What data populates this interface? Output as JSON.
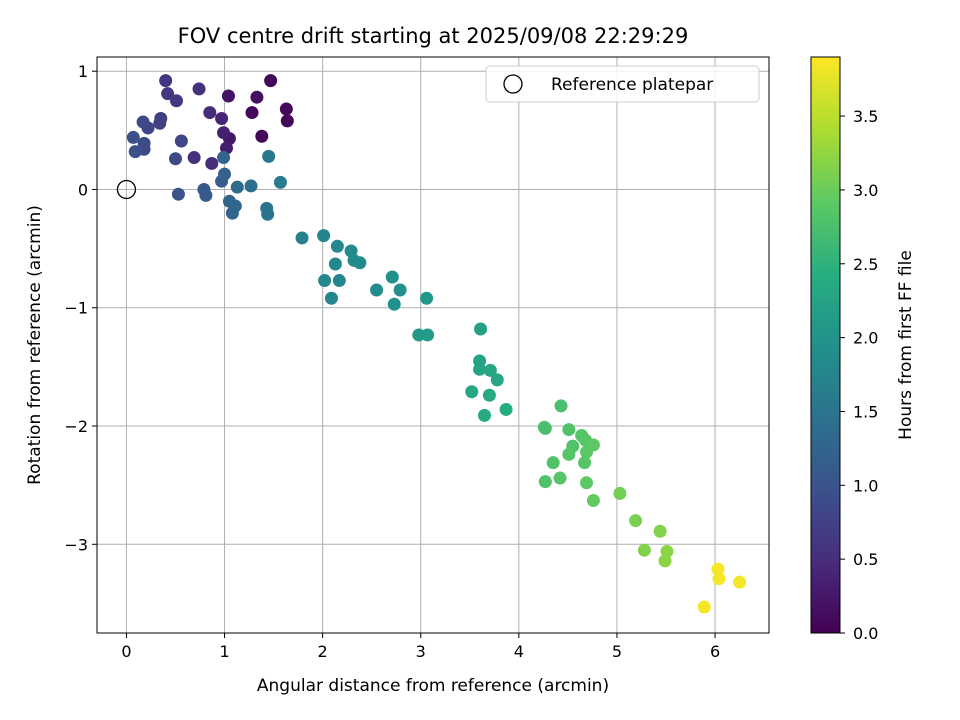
{
  "chart_data": {
    "type": "scatter",
    "title": "FOV centre drift starting at 2025/09/08 22:29:29",
    "xlabel": "Angular distance from reference (arcmin)",
    "ylabel": "Rotation from reference (arcmin)",
    "xlim": [
      -0.3,
      6.55
    ],
    "ylim": [
      -3.75,
      1.12
    ],
    "xticks": [
      0,
      1,
      2,
      3,
      4,
      5,
      6
    ],
    "yticks": [
      1,
      0,
      -1,
      -2,
      -3
    ],
    "grid": true,
    "legend": {
      "placement": "top-right",
      "entries": [
        "Reference platepar"
      ]
    },
    "reference_point": {
      "x": 0,
      "y": 0
    },
    "colorbar": {
      "label": "Hours from first FF file",
      "range": [
        0,
        3.9
      ],
      "ticks": [
        0.0,
        0.5,
        1.0,
        1.5,
        2.0,
        2.5,
        3.0,
        3.5
      ],
      "tick_labels": [
        "0.0",
        "0.5",
        "1.0",
        "1.5",
        "2.0",
        "2.5",
        "3.0",
        "3.5"
      ],
      "colormap": "viridis"
    },
    "points": [
      {
        "x": 1.47,
        "y": 0.92,
        "c": 0.05
      },
      {
        "x": 1.63,
        "y": 0.68,
        "c": 0.05
      },
      {
        "x": 1.64,
        "y": 0.58,
        "c": 0.05
      },
      {
        "x": 1.38,
        "y": 0.45,
        "c": 0.08
      },
      {
        "x": 1.28,
        "y": 0.65,
        "c": 0.1
      },
      {
        "x": 1.33,
        "y": 0.78,
        "c": 0.15
      },
      {
        "x": 1.04,
        "y": 0.79,
        "c": 0.2
      },
      {
        "x": 1.05,
        "y": 0.43,
        "c": 0.25
      },
      {
        "x": 1.02,
        "y": 0.35,
        "c": 0.3
      },
      {
        "x": 0.99,
        "y": 0.48,
        "c": 0.35
      },
      {
        "x": 0.97,
        "y": 0.6,
        "c": 0.4
      },
      {
        "x": 0.85,
        "y": 0.65,
        "c": 0.45
      },
      {
        "x": 0.87,
        "y": 0.22,
        "c": 0.5
      },
      {
        "x": 0.74,
        "y": 0.85,
        "c": 0.55
      },
      {
        "x": 0.69,
        "y": 0.27,
        "c": 0.55
      },
      {
        "x": 0.42,
        "y": 0.81,
        "c": 0.6
      },
      {
        "x": 0.4,
        "y": 0.92,
        "c": 0.6
      },
      {
        "x": 0.51,
        "y": 0.75,
        "c": 0.65
      },
      {
        "x": 0.35,
        "y": 0.6,
        "c": 0.7
      },
      {
        "x": 0.34,
        "y": 0.56,
        "c": 0.75
      },
      {
        "x": 0.56,
        "y": 0.41,
        "c": 0.8
      },
      {
        "x": 0.5,
        "y": 0.26,
        "c": 0.85
      },
      {
        "x": 0.22,
        "y": 0.52,
        "c": 0.8
      },
      {
        "x": 0.17,
        "y": 0.57,
        "c": 0.85
      },
      {
        "x": 0.18,
        "y": 0.39,
        "c": 0.9
      },
      {
        "x": 0.18,
        "y": 0.34,
        "c": 0.9
      },
      {
        "x": 0.07,
        "y": 0.44,
        "c": 0.95
      },
      {
        "x": 0.09,
        "y": 0.32,
        "c": 0.95
      },
      {
        "x": 0.53,
        "y": -0.04,
        "c": 1.0
      },
      {
        "x": 0.79,
        "y": 0.0,
        "c": 1.05
      },
      {
        "x": 0.81,
        "y": -0.05,
        "c": 1.1
      },
      {
        "x": 0.97,
        "y": 0.07,
        "c": 1.15
      },
      {
        "x": 1.0,
        "y": 0.13,
        "c": 1.2
      },
      {
        "x": 1.05,
        "y": -0.1,
        "c": 1.25
      },
      {
        "x": 1.08,
        "y": -0.2,
        "c": 1.25
      },
      {
        "x": 1.11,
        "y": -0.14,
        "c": 1.3
      },
      {
        "x": 1.13,
        "y": 0.02,
        "c": 1.35
      },
      {
        "x": 1.27,
        "y": 0.03,
        "c": 1.4
      },
      {
        "x": 1.43,
        "y": -0.16,
        "c": 1.45
      },
      {
        "x": 1.44,
        "y": -0.21,
        "c": 1.5
      },
      {
        "x": 0.99,
        "y": 0.27,
        "c": 1.25
      },
      {
        "x": 1.45,
        "y": 0.28,
        "c": 1.55
      },
      {
        "x": 1.57,
        "y": 0.06,
        "c": 1.6
      },
      {
        "x": 1.79,
        "y": -0.41,
        "c": 1.7
      },
      {
        "x": 2.01,
        "y": -0.39,
        "c": 1.75
      },
      {
        "x": 2.15,
        "y": -0.48,
        "c": 1.8
      },
      {
        "x": 2.29,
        "y": -0.52,
        "c": 1.85
      },
      {
        "x": 2.32,
        "y": -0.6,
        "c": 1.85
      },
      {
        "x": 2.38,
        "y": -0.62,
        "c": 1.85
      },
      {
        "x": 2.13,
        "y": -0.63,
        "c": 1.8
      },
      {
        "x": 2.02,
        "y": -0.77,
        "c": 1.8
      },
      {
        "x": 2.17,
        "y": -0.77,
        "c": 1.8
      },
      {
        "x": 2.09,
        "y": -0.92,
        "c": 1.8
      },
      {
        "x": 2.55,
        "y": -0.85,
        "c": 1.9
      },
      {
        "x": 2.71,
        "y": -0.74,
        "c": 1.95
      },
      {
        "x": 2.79,
        "y": -0.85,
        "c": 1.95
      },
      {
        "x": 2.73,
        "y": -0.97,
        "c": 1.95
      },
      {
        "x": 3.06,
        "y": -0.92,
        "c": 2.05
      },
      {
        "x": 2.98,
        "y": -1.23,
        "c": 2.1
      },
      {
        "x": 3.07,
        "y": -1.23,
        "c": 2.1
      },
      {
        "x": 3.61,
        "y": -1.18,
        "c": 2.2
      },
      {
        "x": 3.6,
        "y": -1.45,
        "c": 2.25
      },
      {
        "x": 3.6,
        "y": -1.52,
        "c": 2.25
      },
      {
        "x": 3.71,
        "y": -1.53,
        "c": 2.3
      },
      {
        "x": 3.78,
        "y": -1.61,
        "c": 2.3
      },
      {
        "x": 3.52,
        "y": -1.71,
        "c": 2.3
      },
      {
        "x": 3.7,
        "y": -1.74,
        "c": 2.35
      },
      {
        "x": 3.87,
        "y": -1.86,
        "c": 2.4
      },
      {
        "x": 3.65,
        "y": -1.91,
        "c": 2.35
      },
      {
        "x": 4.43,
        "y": -1.83,
        "c": 2.75
      },
      {
        "x": 4.26,
        "y": -2.01,
        "c": 2.75
      },
      {
        "x": 4.27,
        "y": -2.02,
        "c": 2.75
      },
      {
        "x": 4.51,
        "y": -2.03,
        "c": 2.8
      },
      {
        "x": 4.64,
        "y": -2.08,
        "c": 2.85
      },
      {
        "x": 4.68,
        "y": -2.12,
        "c": 2.85
      },
      {
        "x": 4.55,
        "y": -2.17,
        "c": 2.8
      },
      {
        "x": 4.76,
        "y": -2.16,
        "c": 2.9
      },
      {
        "x": 4.69,
        "y": -2.22,
        "c": 2.9
      },
      {
        "x": 4.51,
        "y": -2.24,
        "c": 2.85
      },
      {
        "x": 4.35,
        "y": -2.31,
        "c": 2.8
      },
      {
        "x": 4.67,
        "y": -2.31,
        "c": 2.85
      },
      {
        "x": 4.42,
        "y": -2.44,
        "c": 2.85
      },
      {
        "x": 4.27,
        "y": -2.47,
        "c": 2.8
      },
      {
        "x": 4.69,
        "y": -2.48,
        "c": 2.9
      },
      {
        "x": 4.76,
        "y": -2.63,
        "c": 2.95
      },
      {
        "x": 5.03,
        "y": -2.57,
        "c": 3.05
      },
      {
        "x": 5.19,
        "y": -2.8,
        "c": 3.1
      },
      {
        "x": 5.44,
        "y": -2.89,
        "c": 3.15
      },
      {
        "x": 5.28,
        "y": -3.05,
        "c": 3.15
      },
      {
        "x": 5.51,
        "y": -3.06,
        "c": 3.2
      },
      {
        "x": 5.49,
        "y": -3.14,
        "c": 3.2
      },
      {
        "x": 6.03,
        "y": -3.21,
        "c": 3.85
      },
      {
        "x": 6.04,
        "y": -3.29,
        "c": 3.85
      },
      {
        "x": 6.25,
        "y": -3.32,
        "c": 3.85
      },
      {
        "x": 5.89,
        "y": -3.53,
        "c": 3.85
      }
    ]
  }
}
